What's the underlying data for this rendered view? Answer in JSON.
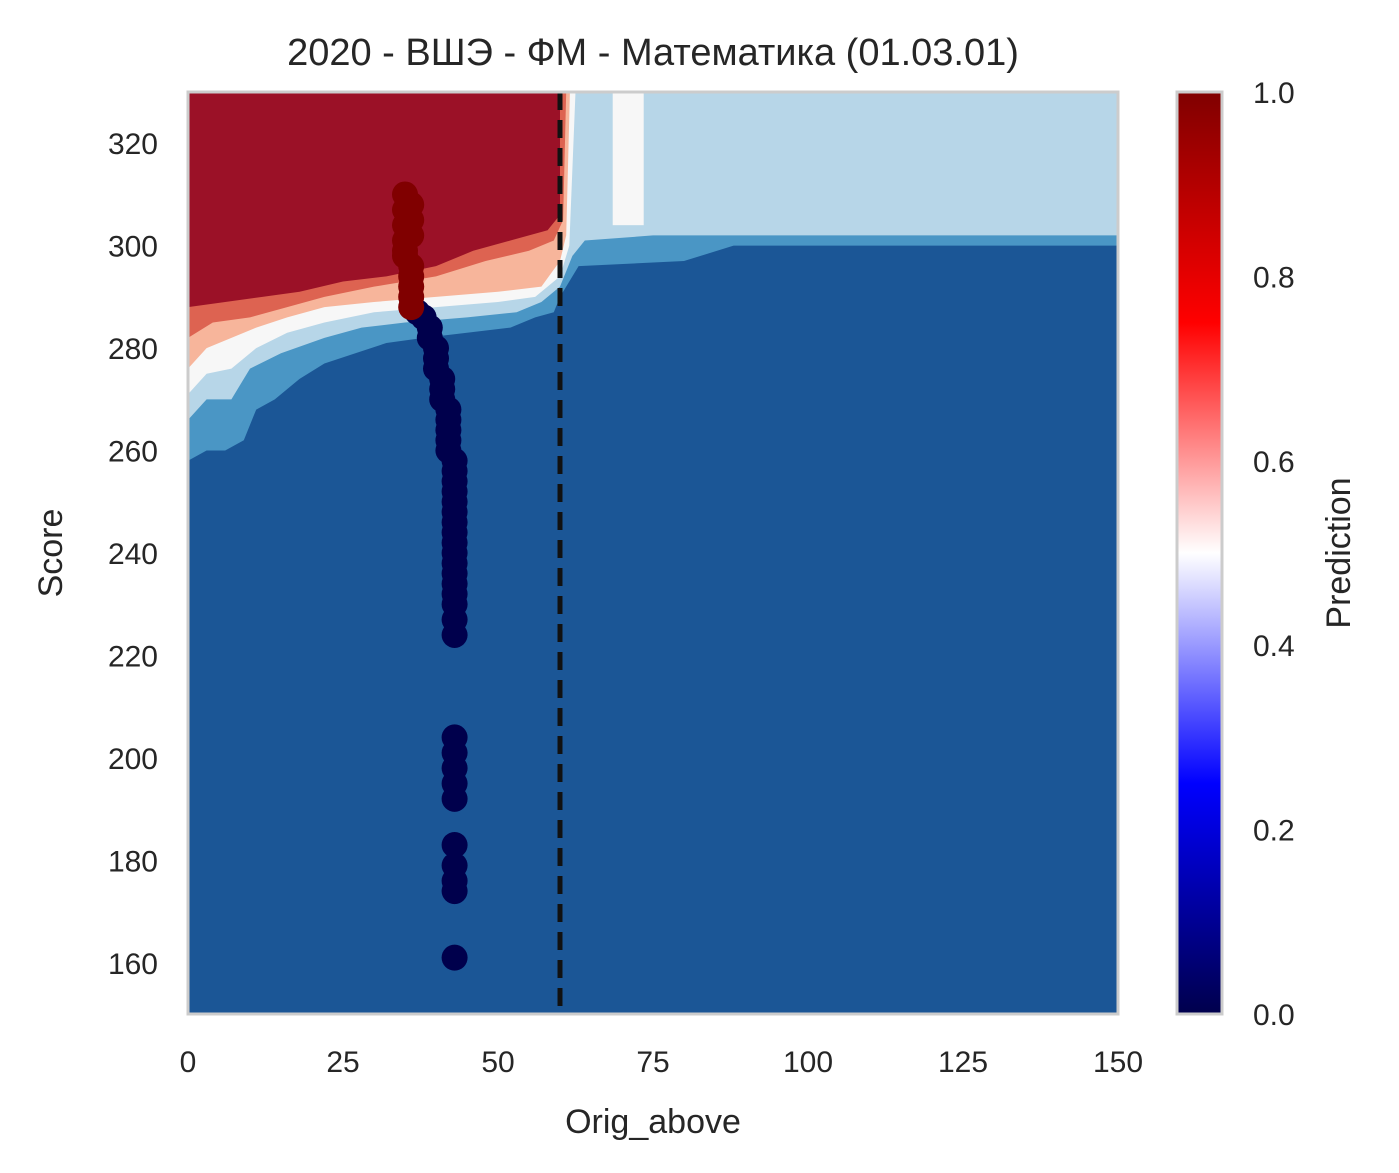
{
  "chart_data": {
    "type": "contour",
    "title": "2020 - ВШЭ - ФМ - Математика (01.03.01)",
    "xlabel": "Orig_above",
    "ylabel": "Score",
    "xlim": [
      0,
      150
    ],
    "ylim": [
      150,
      330
    ],
    "xticks": [
      "0",
      "25",
      "50",
      "75",
      "100",
      "125",
      "150"
    ],
    "yticks": [
      "160",
      "180",
      "200",
      "220",
      "240",
      "260",
      "280",
      "300",
      "320"
    ],
    "grid": false,
    "threshold_line": {
      "x": 60,
      "style": "dashed",
      "color": "#111111"
    },
    "colorbar": {
      "label": "Prediction",
      "range": [
        0,
        1
      ],
      "ticks": [
        "0.0",
        "0.2",
        "0.4",
        "0.6",
        "0.8",
        "1.0"
      ],
      "colors": [
        "#00004c",
        "#0000ff",
        "#ffffff",
        "#ff0000",
        "#800000"
      ]
    },
    "contour_colors": {
      "level_0": "#1b5696",
      "level_1": "#4a96c5",
      "level_2": "#b7d6e8",
      "level_3": "#f7f7f7",
      "level_4": "#f7b59b",
      "level_5": "#dd6351",
      "level_6": "#9b1127"
    },
    "points_accepted": [
      [
        35,
        310
      ],
      [
        35,
        307
      ],
      [
        35,
        304
      ],
      [
        35,
        301
      ],
      [
        35,
        298
      ],
      [
        36,
        296
      ],
      [
        36,
        294
      ],
      [
        36,
        292
      ],
      [
        36,
        290
      ],
      [
        36,
        288
      ],
      [
        36,
        308
      ],
      [
        36,
        305
      ],
      [
        36,
        302
      ],
      [
        35,
        299
      ]
    ],
    "points_rejected": [
      [
        37,
        287
      ],
      [
        38,
        286
      ],
      [
        39,
        284
      ],
      [
        39,
        282
      ],
      [
        40,
        280
      ],
      [
        40,
        278
      ],
      [
        40,
        276
      ],
      [
        41,
        274
      ],
      [
        41,
        272
      ],
      [
        41,
        270
      ],
      [
        42,
        268
      ],
      [
        42,
        266
      ],
      [
        42,
        264
      ],
      [
        42,
        262
      ],
      [
        42,
        260
      ],
      [
        43,
        258
      ],
      [
        43,
        256
      ],
      [
        43,
        254
      ],
      [
        43,
        252
      ],
      [
        43,
        250
      ],
      [
        43,
        248
      ],
      [
        43,
        246
      ],
      [
        43,
        244
      ],
      [
        43,
        242
      ],
      [
        43,
        240
      ],
      [
        43,
        238
      ],
      [
        43,
        236
      ],
      [
        43,
        234
      ],
      [
        43,
        232
      ],
      [
        43,
        230
      ],
      [
        43,
        227
      ],
      [
        43,
        224
      ],
      [
        43,
        204
      ],
      [
        43,
        201
      ],
      [
        43,
        198
      ],
      [
        43,
        195
      ],
      [
        43,
        192
      ],
      [
        43,
        183
      ],
      [
        43,
        179
      ],
      [
        43,
        176
      ],
      [
        43,
        174
      ],
      [
        43,
        161
      ]
    ]
  }
}
